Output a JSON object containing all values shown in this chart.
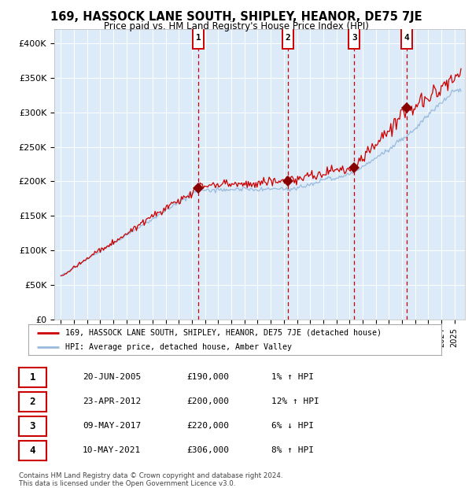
{
  "title": "169, HASSOCK LANE SOUTH, SHIPLEY, HEANOR, DE75 7JE",
  "subtitle": "Price paid vs. HM Land Registry's House Price Index (HPI)",
  "ylim": [
    0,
    420000
  ],
  "xlim_start": 1994.5,
  "xlim_end": 2025.8,
  "yticks": [
    0,
    50000,
    100000,
    150000,
    200000,
    250000,
    300000,
    350000,
    400000
  ],
  "ytick_labels": [
    "£0",
    "£50K",
    "£100K",
    "£150K",
    "£200K",
    "£250K",
    "£300K",
    "£350K",
    "£400K"
  ],
  "background_color": "#ffffff",
  "plot_bg_color": "#ddeaf7",
  "grid_color": "#ffffff",
  "line_color_red": "#cc0000",
  "line_color_blue": "#99bbdd",
  "marker_color": "#880000",
  "vline_color": "#cc0000",
  "sale_markers": [
    {
      "year": 2005.47,
      "price": 190000,
      "label": "1"
    },
    {
      "year": 2012.31,
      "price": 200000,
      "label": "2"
    },
    {
      "year": 2017.36,
      "price": 220000,
      "label": "3"
    },
    {
      "year": 2021.36,
      "price": 306000,
      "label": "4"
    }
  ],
  "number_box_color": "#cc0000",
  "legend_entries": [
    "169, HASSOCK LANE SOUTH, SHIPLEY, HEANOR, DE75 7JE (detached house)",
    "HPI: Average price, detached house, Amber Valley"
  ],
  "table_rows": [
    [
      "1",
      "20-JUN-2005",
      "£190,000",
      "1% ↑ HPI"
    ],
    [
      "2",
      "23-APR-2012",
      "£200,000",
      "12% ↑ HPI"
    ],
    [
      "3",
      "09-MAY-2017",
      "£220,000",
      "6% ↓ HPI"
    ],
    [
      "4",
      "10-MAY-2021",
      "£306,000",
      "8% ↑ HPI"
    ]
  ],
  "footer": "Contains HM Land Registry data © Crown copyright and database right 2024.\nThis data is licensed under the Open Government Licence v3.0."
}
